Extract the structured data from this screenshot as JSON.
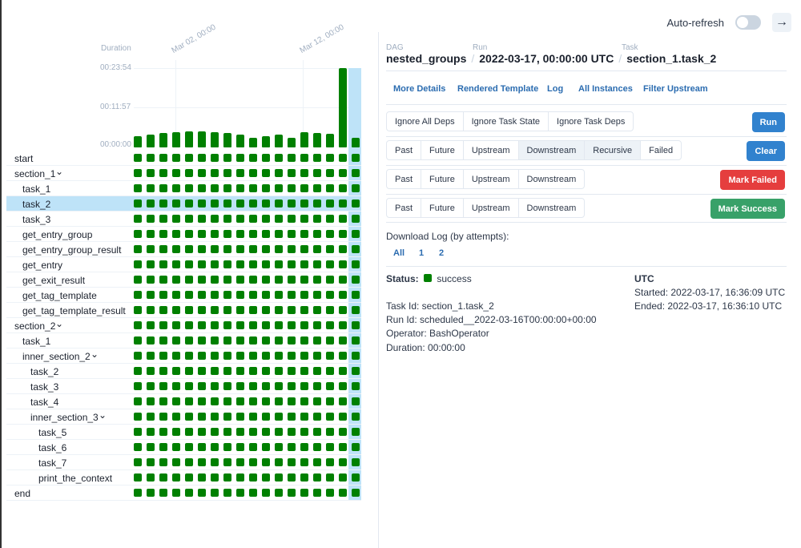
{
  "header": {
    "auto_refresh_label": "Auto-refresh",
    "auto_refresh_on": false,
    "icon": "arrow-right-icon",
    "arrow": "→"
  },
  "chart_data": {
    "type": "bar",
    "ylabel": "Duration",
    "y_ticks": [
      "00:00:00",
      "00:11:57",
      "00:23:54"
    ],
    "ylim_seconds": [
      0,
      1434
    ],
    "date_ticks": [
      "Mar 02, 00:00",
      "Mar 12, 00:00"
    ],
    "values_seconds": [
      196,
      234,
      263,
      282,
      296,
      296,
      282,
      263,
      229,
      172,
      196,
      229,
      172,
      272,
      263,
      249,
      1434,
      167
    ],
    "color": "#008000",
    "selected_run_index": 17
  },
  "tasks": [
    {
      "label": "start",
      "depth": 0
    },
    {
      "label": "section_1",
      "depth": 0,
      "group": true
    },
    {
      "label": "task_1",
      "depth": 1
    },
    {
      "label": "task_2",
      "depth": 1,
      "selected": true
    },
    {
      "label": "task_3",
      "depth": 1
    },
    {
      "label": "get_entry_group",
      "depth": 1
    },
    {
      "label": "get_entry_group_result",
      "depth": 1
    },
    {
      "label": "get_entry",
      "depth": 1
    },
    {
      "label": "get_exit_result",
      "depth": 1
    },
    {
      "label": "get_tag_template",
      "depth": 1
    },
    {
      "label": "get_tag_template_result",
      "depth": 1
    },
    {
      "label": "section_2",
      "depth": 0,
      "group": true
    },
    {
      "label": "task_1",
      "depth": 1
    },
    {
      "label": "inner_section_2",
      "depth": 1,
      "group": true
    },
    {
      "label": "task_2",
      "depth": 2
    },
    {
      "label": "task_3",
      "depth": 2
    },
    {
      "label": "task_4",
      "depth": 2
    },
    {
      "label": "inner_section_3",
      "depth": 2,
      "group": true
    },
    {
      "label": "task_5",
      "depth": 3
    },
    {
      "label": "task_6",
      "depth": 3
    },
    {
      "label": "task_7",
      "depth": 3
    },
    {
      "label": "print_the_context",
      "depth": 3
    },
    {
      "label": "end",
      "depth": 0
    }
  ],
  "status_color": "#008000",
  "breadcrumb": {
    "dag_label": "DAG",
    "dag": "nested_groups",
    "run_label": "Run",
    "run": "2022-03-17, 00:00:00 UTC",
    "task_label": "Task",
    "task": "section_1.task_2"
  },
  "links": [
    "More Details",
    "Rendered Template",
    "Log",
    "All Instances",
    "Filter Upstream"
  ],
  "actions": {
    "run": {
      "options": [
        "Ignore All Deps",
        "Ignore Task State",
        "Ignore Task Deps"
      ],
      "button": "Run",
      "color": "#3182ce"
    },
    "clear": {
      "options": [
        "Past",
        "Future",
        "Upstream",
        "Downstream",
        "Recursive",
        "Failed"
      ],
      "active": [
        "Downstream",
        "Recursive"
      ],
      "button": "Clear",
      "color": "#3182ce"
    },
    "failed": {
      "options": [
        "Past",
        "Future",
        "Upstream",
        "Downstream"
      ],
      "button": "Mark Failed",
      "color": "#e53e3e"
    },
    "success": {
      "options": [
        "Past",
        "Future",
        "Upstream",
        "Downstream"
      ],
      "button": "Mark Success",
      "color": "#38a169"
    }
  },
  "download": {
    "label": "Download Log (by attempts):",
    "attempts": [
      "All",
      "1",
      "2"
    ]
  },
  "details": {
    "status_label": "Status:",
    "status": "success",
    "task_id": "Task Id: section_1.task_2",
    "run_id": "Run Id: scheduled__2022-03-16T00:00:00+00:00",
    "operator": "Operator: BashOperator",
    "duration": "Duration: 00:00:00",
    "tz": "UTC",
    "started": "Started: 2022-03-17, 16:36:09 UTC",
    "ended": "Ended: 2022-03-17, 16:36:10 UTC"
  }
}
